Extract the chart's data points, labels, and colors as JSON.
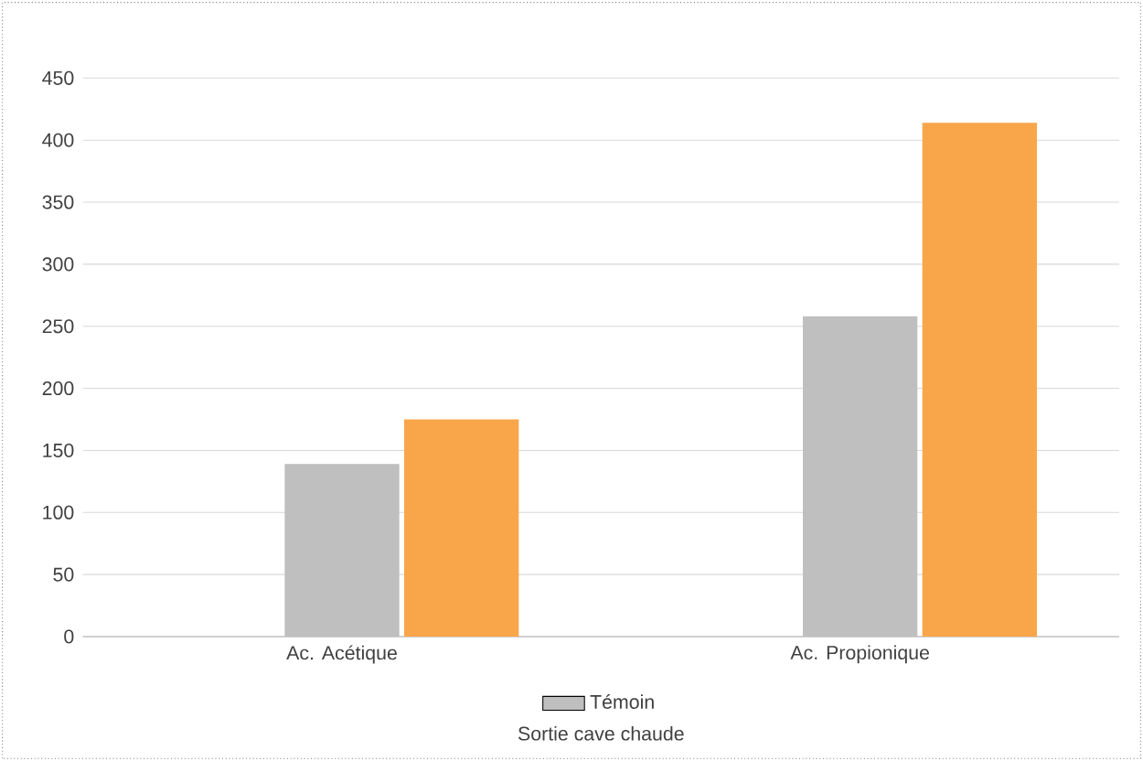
{
  "chart_data": {
    "type": "bar",
    "xlabel": "Sortie cave chaude",
    "categories": [
      "Ac. Acétique",
      "Ac. Propionique"
    ],
    "series": [
      {
        "name": "Témoin",
        "color": "#bfbfbf",
        "values": [
          139,
          258
        ]
      },
      {
        "color": "#f9a64a",
        "values": [
          175,
          414
        ]
      }
    ],
    "ylim": [
      0,
      450
    ],
    "yticks": [
      0,
      50,
      100,
      150,
      200,
      250,
      300,
      350,
      400,
      450
    ],
    "grid": "y",
    "legend": "bottom"
  }
}
